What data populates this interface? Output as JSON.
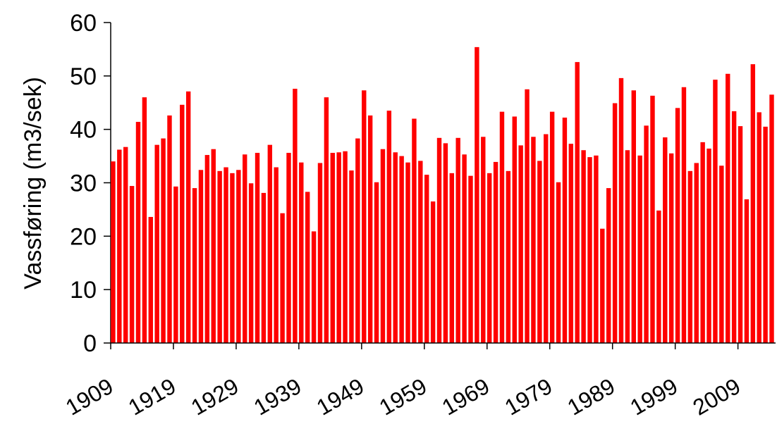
{
  "chart_data": {
    "type": "bar",
    "y_label": "Vassføring (m3/sek)",
    "color": "#ff0000",
    "categories": [
      "1909",
      null,
      null,
      null,
      null,
      null,
      null,
      null,
      null,
      null,
      "1919",
      null,
      null,
      null,
      null,
      null,
      null,
      null,
      null,
      null,
      "1929",
      null,
      null,
      null,
      null,
      null,
      null,
      null,
      null,
      null,
      "1939",
      null,
      null,
      null,
      null,
      null,
      null,
      null,
      null,
      null,
      "1949",
      null,
      null,
      null,
      null,
      null,
      null,
      null,
      null,
      null,
      "1959",
      null,
      null,
      null,
      null,
      null,
      null,
      null,
      null,
      null,
      "1969",
      null,
      null,
      null,
      null,
      null,
      null,
      null,
      null,
      null,
      "1979",
      null,
      null,
      null,
      null,
      null,
      null,
      null,
      null,
      null,
      "1989",
      null,
      null,
      null,
      null,
      null,
      null,
      null,
      null,
      null,
      "1999",
      null,
      null,
      null,
      null,
      null,
      null,
      null,
      null,
      null,
      "2009",
      null,
      null,
      null,
      null,
      null
    ],
    "values": [
      34,
      36.2,
      36.7,
      29.4,
      41.4,
      46,
      23.6,
      37.1,
      38.3,
      42.6,
      29.3,
      44.6,
      47.1,
      29,
      32.4,
      35.2,
      36.3,
      32.2,
      32.9,
      31.8,
      32.4,
      35.3,
      29.9,
      35.6,
      28.1,
      37.1,
      32.9,
      24.3,
      35.6,
      47.6,
      33.8,
      28.3,
      20.9,
      33.7,
      46,
      35.6,
      35.7,
      35.9,
      32.3,
      38.3,
      47.3,
      42.6,
      30.1,
      36.3,
      43.5,
      35.7,
      35,
      33.8,
      42,
      34.1,
      31.5,
      26.5,
      38.4,
      37.4,
      31.8,
      38.4,
      35.3,
      31.3,
      55.4,
      38.6,
      31.8,
      33.9,
      43.3,
      32.2,
      42.4,
      37,
      47.5,
      38.6,
      34.1,
      39.1,
      43.3,
      30.1,
      42.2,
      37.3,
      52.6,
      36.1,
      34.8,
      35.1,
      21.4,
      29,
      44.9,
      49.6,
      36.1,
      47.3,
      35.1,
      40.7,
      46.3,
      24.8,
      38.5,
      35.5,
      44,
      47.9,
      32.2,
      33.7,
      37.6,
      36.4,
      49.3,
      33.2,
      50.4,
      43.4,
      40.6,
      26.9,
      52.2,
      43.2,
      40.5,
      46.5
    ],
    "ylim": [
      0,
      60
    ],
    "yticks": [
      0,
      10,
      20,
      30,
      40,
      50,
      60
    ]
  }
}
